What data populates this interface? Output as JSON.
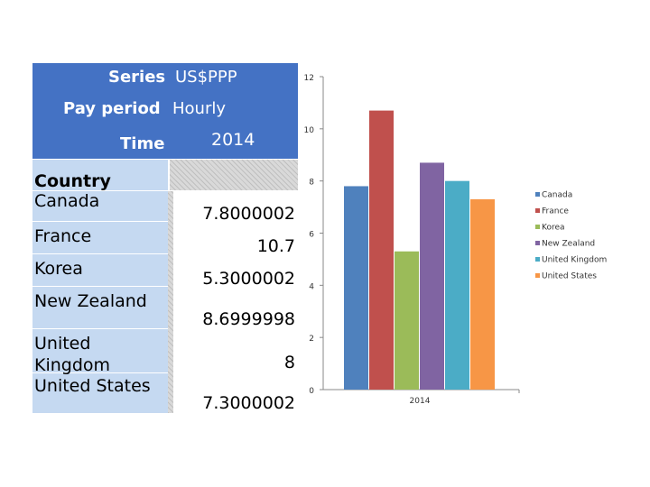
{
  "table": {
    "series_label": "Series",
    "series_value": "US$PPP",
    "period_label": "Pay period",
    "period_value": "Hourly",
    "time_label": "Time",
    "time_value": "2014",
    "country_header": "Country",
    "rows": [
      {
        "country": "Canada",
        "value": "7.8000002"
      },
      {
        "country": "France",
        "value": "10.7"
      },
      {
        "country": "Korea",
        "value": "5.3000002"
      },
      {
        "country": "New Zealand",
        "value": "8.6999998"
      },
      {
        "country": "United Kingdom",
        "value": "8"
      },
      {
        "country": "United States",
        "value": "7.3000002"
      }
    ]
  },
  "chart_data": {
    "type": "bar",
    "categories": [
      "2014"
    ],
    "series": [
      {
        "name": "Canada",
        "values": [
          7.8
        ],
        "color": "#4f81bd"
      },
      {
        "name": "France",
        "values": [
          10.7
        ],
        "color": "#c0504d"
      },
      {
        "name": "Korea",
        "values": [
          5.3
        ],
        "color": "#9bbb59"
      },
      {
        "name": "New Zealand",
        "values": [
          8.7
        ],
        "color": "#8064a2"
      },
      {
        "name": "United Kingdom",
        "values": [
          8
        ],
        "color": "#4bacc6"
      },
      {
        "name": "United States",
        "values": [
          7.3
        ],
        "color": "#f79646"
      }
    ],
    "ylim": [
      0,
      12
    ],
    "yticks": [
      "0",
      "2",
      "4",
      "6",
      "8",
      "10",
      "12"
    ],
    "grid": false,
    "legend": "right"
  }
}
